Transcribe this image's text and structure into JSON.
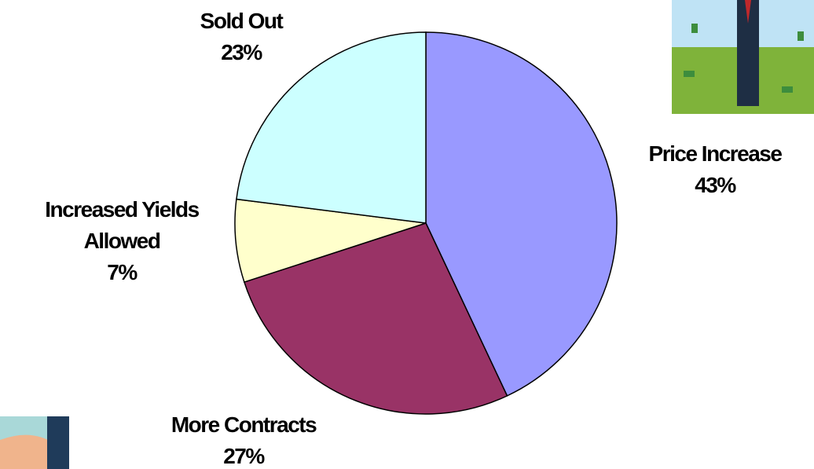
{
  "chart_data": {
    "type": "pie",
    "categories": [
      "Price Increase",
      "More Contracts",
      "Increased Yields Allowed",
      "Sold Out"
    ],
    "values": [
      43,
      27,
      7,
      23
    ],
    "value_labels": [
      "43%",
      "27%",
      "7%",
      "23%"
    ],
    "colors": [
      "#9999ff",
      "#993366",
      "#ffffcc",
      "#ccffff"
    ]
  }
}
